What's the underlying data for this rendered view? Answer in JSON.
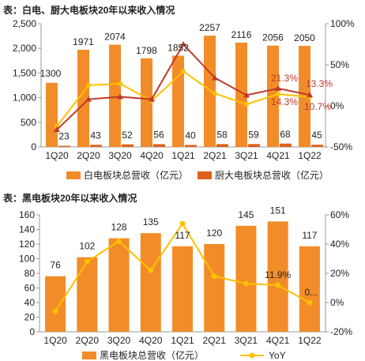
{
  "charts_titles": {
    "top": "表：白电、厨大电板块20年以来收入情况",
    "bottom": "表：黑电板块20年以来收入情况"
  },
  "chart_data": [
    {
      "type": "bar",
      "title": "表：白电、厨大电板块20年以来收入情况",
      "categories": [
        "1Q20",
        "2Q20",
        "3Q20",
        "4Q20",
        "1Q21",
        "2Q21",
        "3Q21",
        "4Q21",
        "1Q22"
      ],
      "series": [
        {
          "name": "白电板块总营收（亿元）",
          "kind": "bar",
          "axis": "left",
          "color": "#f28c28",
          "values": [
            1300,
            1971,
            2074,
            1798,
            1852,
            2257,
            2116,
            2056,
            2050
          ]
        },
        {
          "name": "厨大电板块总营收（亿元）",
          "kind": "bar",
          "axis": "left",
          "color": "#e0601b",
          "values": [
            23,
            43,
            52,
            56,
            40,
            58,
            59,
            68,
            45
          ]
        },
        {
          "name": "",
          "kind": "line",
          "axis": "right",
          "color": "#c0392b",
          "values": [
            -29,
            8,
            11,
            8,
            75,
            34,
            13,
            21.3,
            13.3
          ]
        },
        {
          "name": "",
          "kind": "line",
          "axis": "right",
          "color": "#ffc000",
          "values": [
            -25,
            25,
            27,
            6,
            42,
            15,
            2,
            14.3,
            10.7
          ]
        }
      ],
      "ylim_left": [
        0,
        2500
      ],
      "yticks_left": [
        "0",
        "500",
        "1,000",
        "1,500",
        "2,000",
        "2,500"
      ],
      "ylim_right": [
        -50,
        100
      ],
      "yticks_right": [
        "-50%",
        "0%",
        "50%",
        "100%"
      ],
      "bar_labels": [
        "1300",
        "1971",
        "2074",
        "1798",
        "1852",
        "2257",
        "2116",
        "2056",
        "2050"
      ],
      "small_labels": [
        "23",
        "43",
        "52",
        "56",
        "40",
        "58",
        "59",
        "68",
        "45"
      ],
      "line_labels": {
        "red_4Q21": "21.3%",
        "red_1Q22": "13.3%",
        "yellow_4Q21": "14.3%",
        "yellow_1Q22": "10.7%"
      },
      "legend": [
        "白电板块总营收（亿元）",
        "厨大电板块总营收（亿元）"
      ]
    },
    {
      "type": "bar",
      "title": "表：黑电板块20年以来收入情况",
      "categories": [
        "1Q20",
        "2Q20",
        "3Q20",
        "4Q20",
        "1Q21",
        "2Q21",
        "3Q21",
        "4Q21",
        "1Q22"
      ],
      "series": [
        {
          "name": "黑电板块总营收（亿元）",
          "kind": "bar",
          "axis": "left",
          "color": "#f28c28",
          "values": [
            76,
            102,
            128,
            135,
            117,
            120,
            145,
            151,
            117
          ]
        },
        {
          "name": "YoY",
          "kind": "line",
          "axis": "right",
          "color": "#ffc000",
          "values": [
            -6,
            28,
            42,
            22,
            54,
            18,
            13,
            11.9,
            0
          ]
        }
      ],
      "ylim_left": [
        0,
        160
      ],
      "yticks_left": [
        "0",
        "20",
        "40",
        "60",
        "80",
        "100",
        "120",
        "140",
        "160"
      ],
      "ylim_right": [
        -20,
        60
      ],
      "yticks_right": [
        "-20%",
        "0%",
        "20%",
        "40%",
        "60%"
      ],
      "bar_labels": [
        "76",
        "102",
        "128",
        "135",
        "117",
        "120",
        "145",
        "151",
        "117"
      ],
      "line_labels": {
        "yoy_4Q21": "11.9%",
        "yoy_1Q22": "0..."
      },
      "legend": [
        "黑电板块总营收（亿元）",
        "YoY"
      ]
    }
  ],
  "colors": {
    "bar": "#f28c28",
    "bar_dark": "#e0601b",
    "red_line": "#c0392b",
    "yellow_line": "#ffc000",
    "axis": "#999999"
  }
}
